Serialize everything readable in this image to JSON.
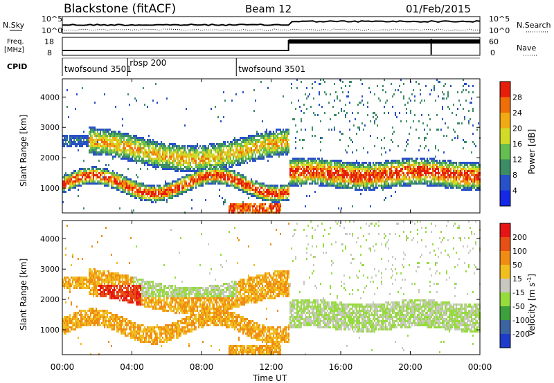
{
  "header": {
    "station": "Blackstone (fitACF)",
    "beam": "Beam 12",
    "date": "01/Feb/2015"
  },
  "noise_panel": {
    "left_label": "N.Sky",
    "left_ticks": [
      "10^5",
      "10^0"
    ],
    "right_label": "N.Search",
    "right_ticks": [
      "10^5",
      "10^0"
    ]
  },
  "freq_panel": {
    "left_label_1": "Freq.",
    "left_label_2": "[MHz]",
    "left_ticks": [
      "18",
      "8"
    ],
    "right_label": "Nave",
    "right_ticks": [
      "60",
      "0"
    ]
  },
  "cpid_panel": {
    "label": "CPID",
    "modes": [
      {
        "name": "twofsound 3501",
        "start_h": 0.0
      },
      {
        "name": "rbsp 200",
        "start_h": 3.75
      },
      {
        "name": "twofsound 3501",
        "start_h": 10.0
      }
    ]
  },
  "chart_data": [
    {
      "type": "heatmap",
      "quantity": "Power",
      "ylabel": "Slant Range [km]",
      "yticks": [
        1000,
        2000,
        3000,
        4000
      ],
      "ylim": [
        180,
        4600
      ],
      "xlim_hours": [
        0,
        24
      ],
      "colorbar_label": "Power [dB]",
      "colorbar_ticks": [
        4,
        8,
        12,
        16,
        20,
        24,
        28
      ],
      "colorbar_range": [
        0,
        32
      ],
      "colors": [
        "#1428e6",
        "#2850c8",
        "#3c8c64",
        "#64be50",
        "#d2dc28",
        "#f0aa14",
        "#f06e0a",
        "#e61e0a"
      ]
    },
    {
      "type": "heatmap",
      "quantity": "Velocity",
      "ylabel": "Slant Range [km]",
      "yticks": [
        1000,
        2000,
        3000,
        4000
      ],
      "ylim": [
        180,
        4600
      ],
      "xlim_hours": [
        0,
        24
      ],
      "colorbar_label": "Velocity [m s",
      "colorbar_label_sup": "-1",
      "colorbar_ticks": [
        "200",
        "100",
        "50",
        "15",
        "-15",
        "-50",
        "-100",
        "-200"
      ],
      "colors": [
        "#1e3cc8",
        "#3c64a0",
        "#3ca03c",
        "#96dc3c",
        "#c8c8c0",
        "#f0be1e",
        "#f08c14",
        "#e65014",
        "#e61414"
      ]
    }
  ],
  "xaxis": {
    "ticks": [
      "00:00",
      "04:00",
      "08:00",
      "12:00",
      "16:00",
      "20:00",
      "00:00"
    ],
    "label": "Time UT"
  }
}
